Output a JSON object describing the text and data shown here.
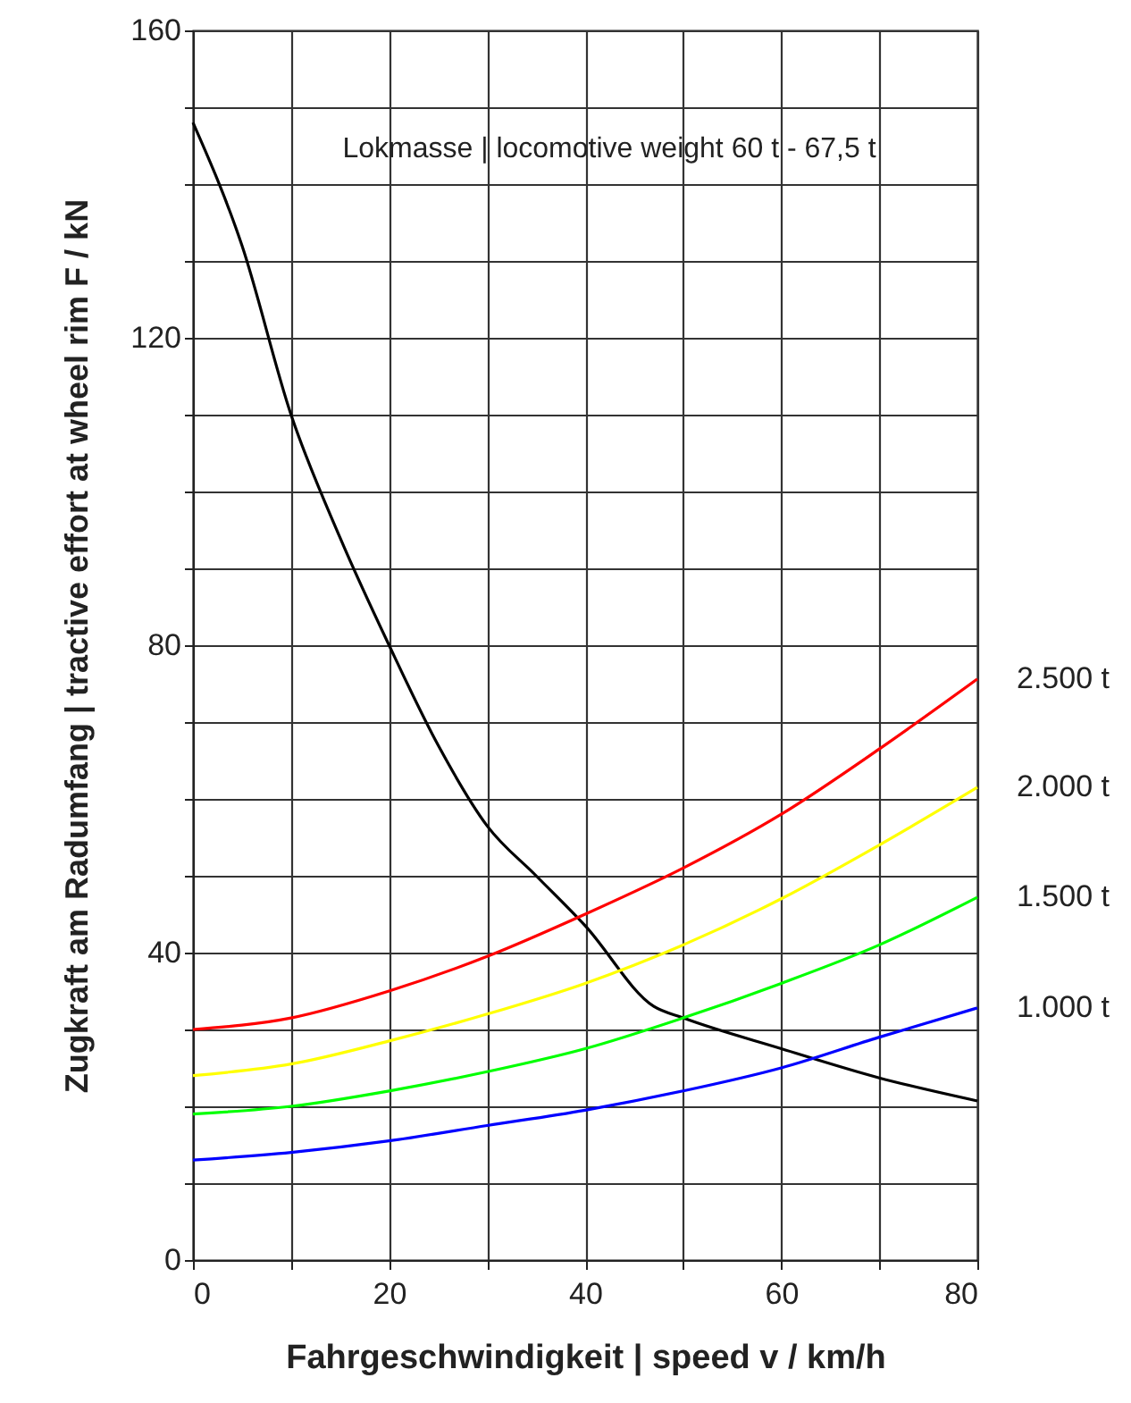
{
  "chart_data": {
    "type": "line",
    "xlabel": "Fahrgeschwindigkeit | speed    v / km/h",
    "ylabel": "Zugkraft am Radumfang | tractive effort at wheel rim    F / kN",
    "annotations": [
      "Lokmasse | locomotive weight  60 t - 67,5 t"
    ],
    "xlim": [
      0,
      80
    ],
    "xticks": [
      0,
      {
        "value": 10,
        "label": null
      },
      20,
      {
        "value": 30,
        "label": null
      },
      40,
      {
        "value": 50,
        "label": null
      },
      60,
      {
        "value": 70,
        "label": null
      },
      80
    ],
    "ylim": [
      0,
      160
    ],
    "yticks": [
      0,
      {
        "value": 10,
        "label": null
      },
      {
        "value": 20,
        "label": null
      },
      {
        "value": 30,
        "label": null
      },
      40,
      {
        "value": 50,
        "label": null
      },
      {
        "value": 60,
        "label": null
      },
      {
        "value": 70,
        "label": null
      },
      80,
      {
        "value": 90,
        "label": null
      },
      {
        "value": 100,
        "label": null
      },
      {
        "value": 110,
        "label": null
      },
      120,
      {
        "value": 130,
        "label": null
      },
      {
        "value": 140,
        "label": null
      },
      {
        "value": 150,
        "label": null
      },
      160
    ],
    "grid": true,
    "series": [
      {
        "color": "#000000",
        "x": [
          0,
          5,
          10,
          15,
          20,
          25,
          30,
          35,
          40,
          47,
          50,
          60,
          70,
          80
        ],
        "values": [
          148,
          132,
          110,
          94,
          80,
          67,
          56.5,
          50,
          43.5,
          33,
          31.5,
          27.5,
          23.7,
          20.7
        ]
      },
      {
        "name": "2.500 t",
        "color": "#ff0000",
        "x": [
          0,
          10,
          20,
          30,
          40,
          50,
          60,
          70,
          80
        ],
        "values": [
          30,
          31.5,
          35,
          39.5,
          45,
          51,
          58,
          66.5,
          75.6
        ]
      },
      {
        "name": "2.000 t",
        "color": "#ffff00",
        "x": [
          0,
          10,
          20,
          30,
          40,
          50,
          60,
          70,
          80
        ],
        "values": [
          24,
          25.5,
          28.5,
          32,
          36,
          41,
          47,
          54,
          61.5
        ]
      },
      {
        "name": "1.500 t",
        "color": "#00ff00",
        "x": [
          0,
          10,
          20,
          30,
          40,
          50,
          60,
          70,
          80
        ],
        "values": [
          19,
          20,
          22,
          24.5,
          27.5,
          31.5,
          36,
          41,
          47.2
        ]
      },
      {
        "name": "1.000 t",
        "color": "#0000ff",
        "x": [
          0,
          10,
          20,
          30,
          40,
          50,
          60,
          70,
          80
        ],
        "values": [
          13,
          14,
          15.5,
          17.5,
          19.5,
          22,
          25,
          29,
          32.8
        ]
      }
    ]
  }
}
